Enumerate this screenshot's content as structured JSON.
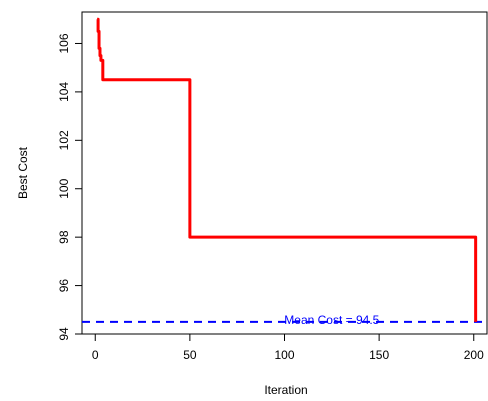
{
  "chart_data": {
    "type": "line",
    "title": "",
    "xlabel": "Iteration",
    "ylabel": "Best Cost",
    "xlim": [
      -7,
      207
    ],
    "ylim": [
      94,
      107.3
    ],
    "x_ticks": [
      0,
      50,
      100,
      150,
      200
    ],
    "x_tick_labels": [
      "0",
      "50",
      "100",
      "150",
      "200"
    ],
    "y_ticks": [
      94,
      96,
      98,
      100,
      102,
      104,
      106
    ],
    "y_tick_labels": [
      "94",
      "96",
      "98",
      "100",
      "102",
      "104",
      "106"
    ],
    "grid": false,
    "legend": "none",
    "series": [
      {
        "color": "#ff0000",
        "step": true,
        "x": [
          1,
          1.5,
          2,
          2.5,
          3,
          4,
          49,
          50,
          200,
          201
        ],
        "y": [
          107,
          106.5,
          105.8,
          105.5,
          105.3,
          104.5,
          104.5,
          98,
          98,
          94.5
        ]
      }
    ],
    "reference_lines": [
      {
        "orientation": "horizontal",
        "y": 94.5,
        "color": "#0000ff",
        "style": "dashed"
      }
    ],
    "annotations": [
      {
        "text": "Mean Cost = 94.5",
        "x": 125,
        "y": 94.5,
        "color": "#0000ff"
      }
    ]
  }
}
